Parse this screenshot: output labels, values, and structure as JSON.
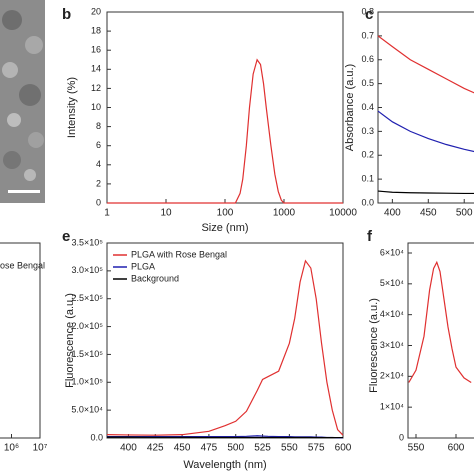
{
  "chart_data": [
    {
      "type": "line",
      "label": "b",
      "xlabel": "Size (nm)",
      "ylabel": "Intensity (%)",
      "xscale": "log",
      "xlim": [
        1,
        10000
      ],
      "xticks": [
        1,
        10,
        100,
        1000,
        10000
      ],
      "ylim": [
        0,
        20
      ],
      "yticks": [
        0,
        2,
        4,
        6,
        8,
        10,
        12,
        14,
        16,
        18,
        20
      ],
      "x": [
        1,
        100,
        150,
        180,
        200,
        230,
        260,
        300,
        350,
        400,
        450,
        500,
        600,
        700,
        800,
        900,
        1000,
        10000
      ],
      "series": [
        {
          "color": "#e03030",
          "values": [
            0,
            0,
            0,
            1,
            2.5,
            6,
            10,
            13.5,
            15,
            14.5,
            12.5,
            10,
            6,
            3,
            1.2,
            0.3,
            0,
            0
          ]
        }
      ]
    },
    {
      "type": "line",
      "label": "c",
      "ylabel": "Absorbance (a.u.)",
      "xlim": [
        380,
        515
      ],
      "xticks": [
        400,
        450,
        500
      ],
      "ylim": [
        0,
        0.8
      ],
      "yticks": [
        {
          "value": 0,
          "label": "0.0"
        },
        0.1,
        0.2,
        0.3,
        0.4,
        0.5,
        0.6,
        0.7,
        0.8
      ],
      "x": [
        380,
        400,
        425,
        450,
        475,
        500,
        515
      ],
      "series": [
        {
          "color": "#e03030",
          "values": [
            0.7,
            0.655,
            0.6,
            0.56,
            0.52,
            0.48,
            0.46
          ]
        },
        {
          "color": "#2020b0",
          "values": [
            0.385,
            0.34,
            0.3,
            0.27,
            0.245,
            0.225,
            0.215
          ]
        },
        {
          "color": "#000000",
          "values": [
            0.05,
            0.045,
            0.043,
            0.042,
            0.041,
            0.04,
            0.04
          ]
        }
      ]
    },
    {
      "type": "line",
      "xscale": "log",
      "xlim": [
        100000,
        10000000
      ],
      "xticks": [
        {
          "value": 1000000,
          "label": "10⁶"
        },
        {
          "value": 10000000,
          "label": "10⁷"
        }
      ],
      "annotations": [
        "ose Bengal"
      ]
    },
    {
      "type": "line",
      "label": "e",
      "xlabel": "Wavelength (nm)",
      "ylabel": "Fluorescence (a.u.)",
      "legend": "upper left",
      "xlim": [
        380,
        600
      ],
      "xticks": [
        400,
        425,
        450,
        475,
        500,
        525,
        550,
        575,
        600
      ],
      "ylim": [
        0,
        350000
      ],
      "yticks": [
        {
          "value": 0,
          "label": "0.0"
        },
        {
          "value": 50000,
          "label": "5.0×10⁴"
        },
        {
          "value": 100000,
          "label": "1.0×10⁵"
        },
        {
          "value": 150000,
          "label": "1.5×10⁵"
        },
        {
          "value": 200000,
          "label": "2.0×10⁵"
        },
        {
          "value": 250000,
          "label": "2.5×10⁵"
        },
        {
          "value": 300000,
          "label": "3.0×10⁵"
        },
        {
          "value": 350000,
          "label": "3.5×10⁵"
        }
      ],
      "x": [
        380,
        400,
        425,
        450,
        475,
        490,
        500,
        510,
        520,
        525,
        530,
        540,
        550,
        555,
        560,
        565,
        570,
        575,
        580,
        585,
        590,
        595,
        600
      ],
      "series": [
        {
          "name": "PLGA with Rose Bengal",
          "color": "#e03030",
          "values": [
            6000,
            5500,
            5000,
            6000,
            12000,
            22000,
            30000,
            48000,
            85000,
            105000,
            110000,
            120000,
            170000,
            215000,
            280000,
            318000,
            305000,
            250000,
            170000,
            100000,
            50000,
            15000,
            5000
          ]
        },
        {
          "name": "PLGA",
          "color": "#2020b0",
          "values": [
            2500,
            2500,
            2500,
            2500,
            2500,
            2500,
            2500,
            3000,
            4000,
            3500,
            3000,
            2500,
            2500,
            2000,
            2000,
            2000,
            2000,
            1500,
            1500,
            1000,
            1000,
            500,
            500
          ]
        },
        {
          "name": "Background",
          "color": "#000000",
          "values": [
            1500,
            1500,
            1200,
            1200,
            1000,
            1000,
            1000,
            1000,
            1000,
            1000,
            1000,
            1000,
            1000,
            1000,
            1000,
            1000,
            1000,
            800,
            800,
            800,
            800,
            800,
            800
          ]
        }
      ]
    },
    {
      "type": "line",
      "label": "f",
      "ylabel": "Fluorescence (a.u.)",
      "xlim": [
        540,
        625
      ],
      "xticks": [
        550,
        600
      ],
      "ylim": [
        0,
        60000
      ],
      "yticks": [
        0,
        {
          "value": 10000,
          "label": "1×10⁴"
        },
        {
          "value": 20000,
          "label": "2×10⁴"
        },
        {
          "value": 30000,
          "label": "3×10⁴"
        },
        {
          "value": 40000,
          "label": "4×10⁴"
        },
        {
          "value": 50000,
          "label": "5×10⁴"
        },
        {
          "value": 60000,
          "label": "6×10⁴"
        }
      ],
      "x": [
        541,
        550,
        560,
        567,
        572,
        576,
        580,
        585,
        590,
        595,
        600,
        610,
        619
      ],
      "series": [
        {
          "color": "#e03030",
          "values": [
            18000,
            22000,
            33000,
            48000,
            55000,
            57000,
            54000,
            45000,
            36000,
            29000,
            23000,
            19500,
            18000
          ]
        }
      ]
    }
  ]
}
